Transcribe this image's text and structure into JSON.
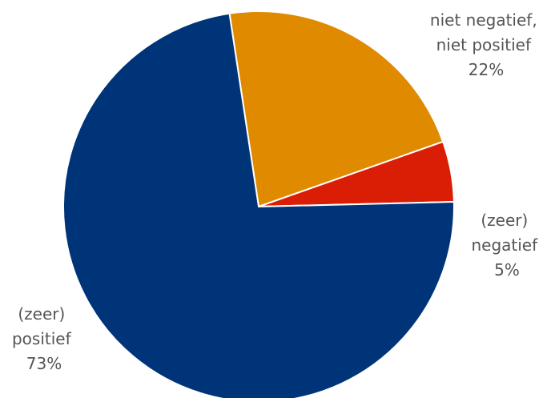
{
  "chart_data": {
    "type": "pie",
    "title": "",
    "legend": "none",
    "slices": [
      {
        "label_lines": [
          "niet negatief,",
          "niet positief",
          "22%"
        ],
        "value": 22,
        "color": "#E08A00"
      },
      {
        "label_lines": [
          "(zeer)",
          "negatief",
          "5%"
        ],
        "value": 5,
        "color": "#D91E05"
      },
      {
        "label_lines": [
          "(zeer)",
          "positief",
          "73%"
        ],
        "value": 73,
        "color": "#003479"
      }
    ]
  }
}
